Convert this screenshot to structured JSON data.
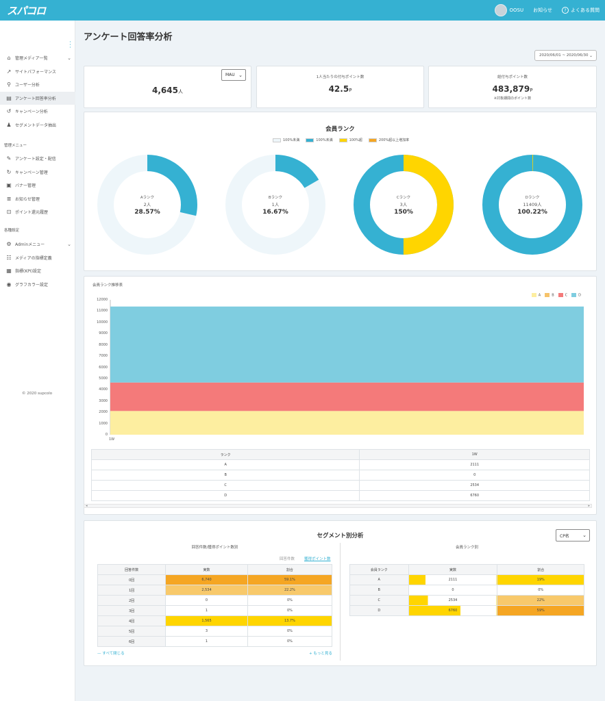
{
  "app": {
    "logo_text": "スパコロ",
    "user_name": "OOSU",
    "news": "お知らせ",
    "faq": "よくある質問"
  },
  "sidebar": {
    "items_top": [
      {
        "label": "管理メディア一覧",
        "icon": "home-icon"
      },
      {
        "label": "サイトパフォーマンス",
        "icon": "trending-icon"
      },
      {
        "label": "ユーザー分析",
        "icon": "user-search-icon"
      },
      {
        "label": "アンケート回答率分析",
        "icon": "survey-icon"
      },
      {
        "label": "キャンペーン分析",
        "icon": "campaign-icon"
      },
      {
        "label": "セグメントデータ抽出",
        "icon": "users-icon"
      }
    ],
    "section_admin": "管理メニュー",
    "items_admin": [
      {
        "label": "アンケート設定・配信",
        "icon": "survey-edit-icon"
      },
      {
        "label": "キャンペーン管理",
        "icon": "campaign-manage-icon"
      },
      {
        "label": "バナー管理",
        "icon": "image-icon"
      },
      {
        "label": "お知らせ管理",
        "icon": "document-icon"
      },
      {
        "label": "ポイント還元履歴",
        "icon": "history-icon"
      }
    ],
    "section_settings": "各種設定",
    "items_settings": [
      {
        "label": "Adminメニュー",
        "icon": "gear-icon"
      },
      {
        "label": "メディアの指標定義",
        "icon": "media-define-icon"
      },
      {
        "label": "指標(KPI)設定",
        "icon": "kpi-icon"
      },
      {
        "label": "グラフカラー設定",
        "icon": "palette-icon"
      }
    ],
    "copyright": "© 2020 supcolo"
  },
  "page": {
    "title": "アンケート回答率分析",
    "date_range": "2020/06/01 ~ 2020/06/30"
  },
  "stats": {
    "mau_select": "MAU",
    "mau_value": "4,645",
    "mau_unit": "人",
    "per_user_label": "1人当たりの付与ポイント数",
    "per_user_value": "42.5",
    "per_user_unit": "P",
    "total_label": "総付与ポイント数",
    "total_value": "483,879",
    "total_unit": "P",
    "total_note": "※対象期間のポイント数"
  },
  "rank": {
    "title": "会員ランク",
    "legend": [
      {
        "label": "100%未満",
        "color": "#eef6fa"
      },
      {
        "label": "100%未満",
        "color": "#35b1d2"
      },
      {
        "label": "100%超",
        "color": "#ffd500"
      },
      {
        "label": "200%超以上増加率",
        "color": "#f5a623"
      }
    ],
    "donuts": [
      {
        "name": "Aランク",
        "count": "2人",
        "pct": "28.57%",
        "value": 28.57
      },
      {
        "name": "Bランク",
        "count": "1人",
        "pct": "16.67%",
        "value": 16.67
      },
      {
        "name": "Cランク",
        "count": "3人",
        "pct": "150%",
        "value": 150
      },
      {
        "name": "Dランク",
        "count": "11409人",
        "pct": "100.22%",
        "value": 100.22
      }
    ]
  },
  "chart_data": {
    "type": "area",
    "title": "会員ランク推移表",
    "categories": [
      "1W"
    ],
    "ylim": [
      0,
      12000
    ],
    "yticks": [
      0,
      1000,
      2000,
      3000,
      4000,
      5000,
      6000,
      7000,
      8000,
      9000,
      10000,
      11000,
      12000
    ],
    "stacked": true,
    "legend_position": "top-right",
    "series": [
      {
        "name": "A",
        "values": [
          2111
        ],
        "color": "#fdeea0"
      },
      {
        "name": "B",
        "values": [
          0
        ],
        "color": "#f6c36a"
      },
      {
        "name": "C",
        "values": [
          2534
        ],
        "color": "#f47a7a"
      },
      {
        "name": "D",
        "values": [
          6760
        ],
        "color": "#7fcde0"
      }
    ]
  },
  "rank_table": {
    "headers": [
      "ランク",
      "1W"
    ],
    "rows": [
      [
        "A",
        "2111"
      ],
      [
        "B",
        "0"
      ],
      [
        "C",
        "2534"
      ],
      [
        "D",
        "6760"
      ]
    ]
  },
  "segment": {
    "title": "セグメント別分析",
    "select": "CP名",
    "left_title": "回答件数/獲得ポイント数別",
    "tab_count": "回答件数",
    "tab_points": "獲得ポイント数",
    "left_headers": [
      "回答件数",
      "実数",
      "割合"
    ],
    "left_rows": [
      {
        "label": "0回",
        "count": "6,740",
        "pct": "59.1%",
        "shade": "#f5a623"
      },
      {
        "label": "1回",
        "count": "2,534",
        "pct": "22.2%",
        "shade": "#f8c96b"
      },
      {
        "label": "2回",
        "count": "0",
        "pct": "0%",
        "shade": ""
      },
      {
        "label": "3回",
        "count": "1",
        "pct": "0%",
        "shade": ""
      },
      {
        "label": "4回",
        "count": "1,565",
        "pct": "13.7%",
        "shade": "#ffd500"
      },
      {
        "label": "5回",
        "count": "3",
        "pct": "0%",
        "shade": ""
      },
      {
        "label": "6回",
        "count": "1",
        "pct": "0%",
        "shade": ""
      }
    ],
    "collapse_all": "すべて閉じる",
    "show_more": "もっと見る",
    "right_title": "会員ランク別",
    "right_headers": [
      "会員ランク",
      "実数",
      "割合"
    ],
    "right_rows": [
      {
        "label": "A",
        "count": "2111",
        "pct": "19%",
        "bar": 0.19,
        "shade": "#ffd500"
      },
      {
        "label": "B",
        "count": "0",
        "pct": "0%",
        "bar": 0,
        "shade": ""
      },
      {
        "label": "C",
        "count": "2534",
        "pct": "22%",
        "bar": 0.22,
        "shade": "#f8c96b"
      },
      {
        "label": "D",
        "count": "6760",
        "pct": "59%",
        "bar": 0.59,
        "shade": "#f5a623"
      }
    ]
  }
}
